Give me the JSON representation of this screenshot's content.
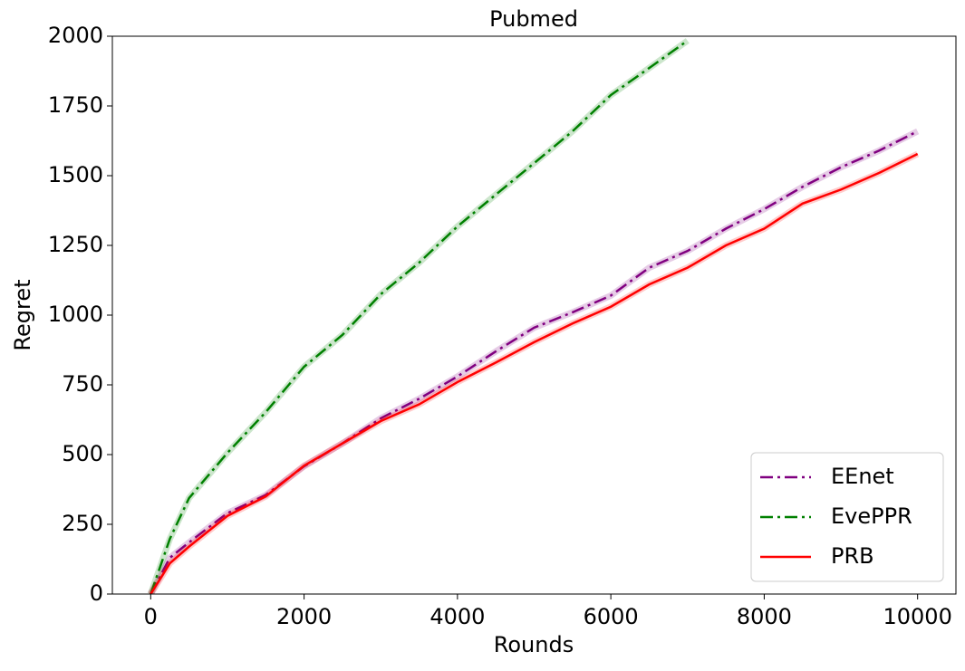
{
  "chart_data": {
    "type": "line",
    "title": "Pubmed",
    "x_label": "Rounds",
    "y_label": "Regret",
    "x": [
      0,
      250,
      500,
      1000,
      1500,
      2000,
      2500,
      3000,
      3500,
      4000,
      4500,
      5000,
      5500,
      6000,
      6500,
      7000,
      7500,
      8000,
      8500,
      9000,
      9500,
      10000
    ],
    "series": [
      {
        "name": "EEnet",
        "color": "#800080",
        "dash": "dashdot",
        "values": [
          0,
          130,
          185,
          290,
          355,
          458,
          540,
          630,
          700,
          780,
          870,
          955,
          1010,
          1070,
          1170,
          1230,
          1310,
          1380,
          1460,
          1530,
          1590,
          1659
        ]
      },
      {
        "name": "EvePPR",
        "color": "#008000",
        "dash": "dashdot",
        "values": [
          0,
          198,
          344,
          506,
          652,
          815,
          929,
          1075,
          1188,
          1318,
          1432,
          1545,
          1659,
          1789,
          1886,
          1984,
          null,
          null,
          null,
          null,
          null,
          null
        ]
      },
      {
        "name": "PRB",
        "color": "#ff0000",
        "dash": "solid",
        "values": [
          0,
          110,
          170,
          280,
          350,
          460,
          540,
          620,
          680,
          760,
          830,
          903,
          970,
          1030,
          1110,
          1170,
          1250,
          1310,
          1400,
          1450,
          1510,
          1578
        ]
      }
    ],
    "xlim": [
      -500,
      10500
    ],
    "ylim": [
      0,
      2000
    ],
    "xticks": [
      0,
      2000,
      4000,
      6000,
      8000,
      10000
    ],
    "yticks": [
      0,
      250,
      500,
      750,
      1000,
      1250,
      1500,
      1750,
      2000
    ],
    "legend": "lower right"
  }
}
